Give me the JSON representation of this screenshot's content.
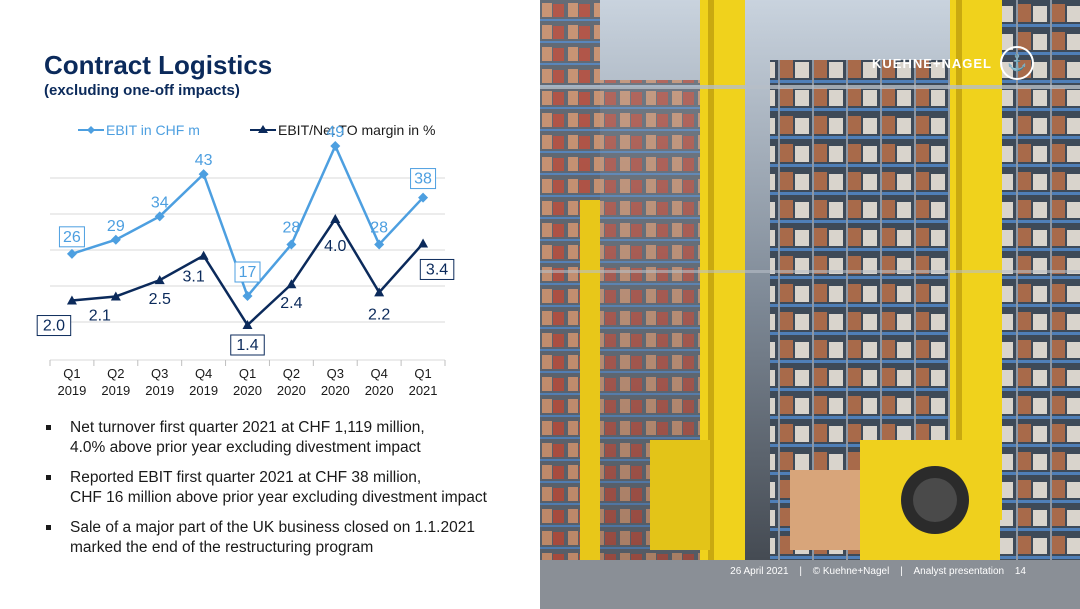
{
  "slide": {
    "title": "Contract Logistics",
    "subtitle": "(excluding one-off impacts)"
  },
  "colors": {
    "title": "#0b2a5b",
    "ebit": "#4d9fe0",
    "margin": "#0b2a5b"
  },
  "chart_data": {
    "type": "line",
    "categories": [
      [
        "Q1",
        "2019"
      ],
      [
        "Q2",
        "2019"
      ],
      [
        "Q3",
        "2019"
      ],
      [
        "Q4",
        "2019"
      ],
      [
        "Q1",
        "2020"
      ],
      [
        "Q2",
        "2020"
      ],
      [
        "Q3",
        "2020"
      ],
      [
        "Q4",
        "2020"
      ],
      [
        "Q1",
        "2021"
      ]
    ],
    "series": [
      {
        "name": "EBIT in CHF m",
        "values": [
          26,
          29,
          34,
          43,
          17,
          28,
          49,
          28,
          38
        ],
        "labels": [
          "26",
          "29",
          "34",
          "43",
          "17",
          "28",
          "49",
          "28",
          "38"
        ],
        "boxed": [
          0,
          4,
          8
        ],
        "color": "#4d9fe0",
        "marker": "diamond"
      },
      {
        "name": "EBIT/Net TO margin in %",
        "values": [
          2.0,
          2.1,
          2.5,
          3.1,
          1.4,
          2.4,
          4.0,
          2.2,
          3.4
        ],
        "labels": [
          "2.0",
          "2.1",
          "2.5",
          "3.1",
          "1.4",
          "2.4",
          "4.0",
          "2.2",
          "3.4"
        ],
        "boxed": [
          0,
          4,
          8
        ],
        "color": "#0b2a5b",
        "marker": "triangle"
      }
    ],
    "legend_position": "top",
    "grid": true
  },
  "bullets": [
    {
      "line1": "Net turnover first quarter 2021 at CHF 1,119 million,",
      "line2": "4.0% above prior year excluding divestment impact"
    },
    {
      "line1": "Reported EBIT first quarter 2021 at CHF 38 million,",
      "line2": "CHF 16 million above prior year excluding divestment impact"
    },
    {
      "line1": "Sale of a major part of the UK business closed on 1.1.2021",
      "line2": "marked the end of the restructuring program"
    }
  ],
  "brand": {
    "logo": "KUEHNE+NAGEL",
    "logo_icon": "anchor-icon"
  },
  "footer": {
    "date": "26 April 2021",
    "separator": "|",
    "copyright": "© Kuehne+Nagel",
    "presentation": "Analyst presentation",
    "page": "14"
  }
}
